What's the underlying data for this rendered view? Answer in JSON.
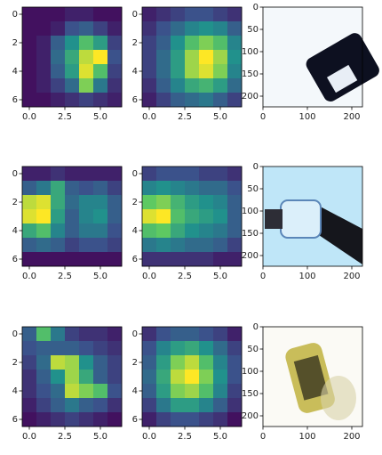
{
  "chart_data": [
    {
      "type": "heatmap",
      "colormap": "viridis",
      "xlim": [
        -0.5,
        6.5
      ],
      "ylim": [
        6.5,
        -0.5
      ],
      "xticks": [
        {
          "value": 0,
          "label": "0.0"
        },
        2.5,
        {
          "value": 5,
          "label": "5.0"
        }
      ],
      "yticks": [
        0,
        2,
        4,
        6
      ],
      "values": [
        [
          0.05,
          0.05,
          0.05,
          0.1,
          0.1,
          0.05,
          0.05
        ],
        [
          0.05,
          0.05,
          0.1,
          0.25,
          0.3,
          0.2,
          0.1
        ],
        [
          0.05,
          0.1,
          0.3,
          0.5,
          0.7,
          0.55,
          0.2
        ],
        [
          0.05,
          0.1,
          0.35,
          0.6,
          0.9,
          1.0,
          0.25
        ],
        [
          0.05,
          0.1,
          0.3,
          0.55,
          0.95,
          0.7,
          0.2
        ],
        [
          0.05,
          0.1,
          0.2,
          0.35,
          0.8,
          0.4,
          0.15
        ],
        [
          0.05,
          0.05,
          0.1,
          0.15,
          0.2,
          0.15,
          0.1
        ]
      ]
    },
    {
      "type": "heatmap",
      "colormap": "viridis",
      "xlim": [
        -0.5,
        6.5
      ],
      "ylim": [
        6.5,
        -0.5
      ],
      "xticks": [
        {
          "value": 0,
          "label": "0.0"
        },
        2.5,
        {
          "value": 5,
          "label": "5.0"
        }
      ],
      "yticks": [
        0,
        2,
        4,
        6
      ],
      "values": [
        [
          0.1,
          0.15,
          0.2,
          0.25,
          0.25,
          0.2,
          0.15
        ],
        [
          0.15,
          0.25,
          0.35,
          0.45,
          0.5,
          0.45,
          0.3
        ],
        [
          0.2,
          0.3,
          0.5,
          0.7,
          0.8,
          0.7,
          0.45
        ],
        [
          0.2,
          0.35,
          0.55,
          0.85,
          1.0,
          0.85,
          0.5
        ],
        [
          0.2,
          0.35,
          0.55,
          0.85,
          0.95,
          0.8,
          0.45
        ],
        [
          0.15,
          0.3,
          0.45,
          0.6,
          0.65,
          0.55,
          0.35
        ],
        [
          0.1,
          0.2,
          0.3,
          0.35,
          0.4,
          0.3,
          0.2
        ]
      ]
    },
    {
      "type": "image",
      "xlim": [
        0,
        224
      ],
      "ylim": [
        224,
        0
      ],
      "xticks": [
        0,
        100,
        200
      ],
      "yticks": [
        0,
        50,
        100,
        150,
        200
      ]
    },
    {
      "type": "heatmap",
      "colormap": "viridis",
      "xlim": [
        -0.5,
        6.5
      ],
      "ylim": [
        6.5,
        -0.5
      ],
      "xticks": [
        {
          "value": 0,
          "label": "0.0"
        },
        2.5,
        {
          "value": 5,
          "label": "5.0"
        }
      ],
      "yticks": [
        0,
        2,
        4,
        6
      ],
      "values": [
        [
          0.1,
          0.1,
          0.15,
          0.1,
          0.1,
          0.1,
          0.1
        ],
        [
          0.3,
          0.4,
          0.6,
          0.3,
          0.25,
          0.3,
          0.2
        ],
        [
          0.9,
          0.95,
          0.6,
          0.35,
          0.45,
          0.45,
          0.3
        ],
        [
          0.95,
          1.0,
          0.55,
          0.3,
          0.45,
          0.5,
          0.3
        ],
        [
          0.6,
          0.7,
          0.45,
          0.3,
          0.4,
          0.4,
          0.25
        ],
        [
          0.3,
          0.35,
          0.3,
          0.2,
          0.25,
          0.25,
          0.2
        ],
        [
          0.05,
          0.05,
          0.05,
          0.05,
          0.05,
          0.05,
          0.05
        ]
      ]
    },
    {
      "type": "heatmap",
      "colormap": "viridis",
      "xlim": [
        -0.5,
        6.5
      ],
      "ylim": [
        6.5,
        -0.5
      ],
      "xticks": [
        {
          "value": 0,
          "label": "0.0"
        },
        2.5,
        {
          "value": 5,
          "label": "5.0"
        }
      ],
      "yticks": [
        0,
        2,
        4,
        6
      ],
      "values": [
        [
          0.2,
          0.25,
          0.25,
          0.25,
          0.2,
          0.2,
          0.15
        ],
        [
          0.45,
          0.5,
          0.45,
          0.4,
          0.35,
          0.35,
          0.25
        ],
        [
          0.75,
          0.8,
          0.65,
          0.55,
          0.5,
          0.45,
          0.3
        ],
        [
          0.95,
          1.0,
          0.7,
          0.6,
          0.55,
          0.5,
          0.3
        ],
        [
          0.7,
          0.75,
          0.6,
          0.5,
          0.45,
          0.4,
          0.3
        ],
        [
          0.4,
          0.45,
          0.4,
          0.35,
          0.35,
          0.3,
          0.2
        ],
        [
          0.15,
          0.15,
          0.15,
          0.15,
          0.15,
          0.1,
          0.1
        ]
      ]
    },
    {
      "type": "image",
      "xlim": [
        0,
        224
      ],
      "ylim": [
        224,
        0
      ],
      "xticks": [
        0,
        100,
        200
      ],
      "yticks": [
        0,
        50,
        100,
        150,
        200
      ]
    },
    {
      "type": "heatmap",
      "colormap": "viridis",
      "xlim": [
        -0.5,
        6.5
      ],
      "ylim": [
        6.5,
        -0.5
      ],
      "xticks": [
        {
          "value": 0,
          "label": "0.0"
        },
        2.5,
        {
          "value": 5,
          "label": "5.0"
        }
      ],
      "yticks": [
        0,
        2,
        4,
        6
      ],
      "values": [
        [
          0.3,
          0.7,
          0.4,
          0.2,
          0.15,
          0.15,
          0.1
        ],
        [
          0.25,
          0.3,
          0.3,
          0.3,
          0.25,
          0.2,
          0.15
        ],
        [
          0.2,
          0.35,
          0.9,
          0.85,
          0.5,
          0.3,
          0.2
        ],
        [
          0.15,
          0.3,
          0.5,
          0.85,
          0.6,
          0.3,
          0.2
        ],
        [
          0.15,
          0.25,
          0.35,
          0.9,
          0.8,
          0.7,
          0.25
        ],
        [
          0.1,
          0.2,
          0.3,
          0.4,
          0.3,
          0.25,
          0.15
        ],
        [
          0.05,
          0.1,
          0.15,
          0.2,
          0.15,
          0.1,
          0.05
        ]
      ]
    },
    {
      "type": "heatmap",
      "colormap": "viridis",
      "xlim": [
        -0.5,
        6.5
      ],
      "ylim": [
        6.5,
        -0.5
      ],
      "xticks": [
        {
          "value": 0,
          "label": "0.0"
        },
        2.5,
        {
          "value": 5,
          "label": "5.0"
        }
      ],
      "yticks": [
        0,
        2,
        4,
        6
      ],
      "values": [
        [
          0.15,
          0.25,
          0.3,
          0.3,
          0.25,
          0.2,
          0.1
        ],
        [
          0.25,
          0.45,
          0.55,
          0.6,
          0.5,
          0.35,
          0.2
        ],
        [
          0.3,
          0.55,
          0.8,
          0.9,
          0.7,
          0.45,
          0.25
        ],
        [
          0.35,
          0.6,
          0.9,
          1.0,
          0.8,
          0.5,
          0.25
        ],
        [
          0.3,
          0.55,
          0.8,
          0.85,
          0.7,
          0.45,
          0.2
        ],
        [
          0.2,
          0.4,
          0.55,
          0.55,
          0.45,
          0.3,
          0.15
        ],
        [
          0.1,
          0.2,
          0.25,
          0.25,
          0.2,
          0.15,
          0.05
        ]
      ]
    },
    {
      "type": "image",
      "xlim": [
        0,
        224
      ],
      "ylim": [
        224,
        0
      ],
      "xticks": [
        0,
        100,
        200
      ],
      "yticks": [
        0,
        50,
        100,
        150,
        200
      ]
    }
  ]
}
